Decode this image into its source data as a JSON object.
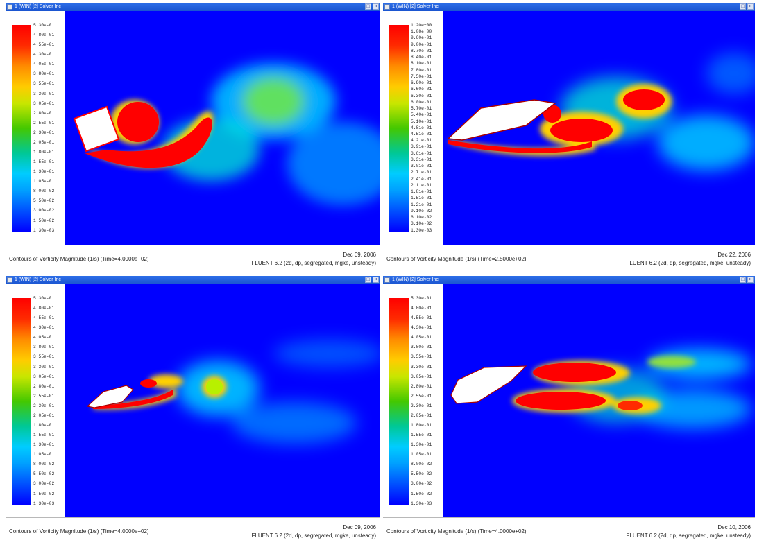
{
  "windows": [
    {
      "title": "1 (WIN) [2] Solver Inc",
      "colorbar_ticks": [
        "5.30e-01",
        "4.80e-01",
        "4.55e-01",
        "4.30e-01",
        "4.05e-01",
        "3.80e-01",
        "3.55e-01",
        "3.30e-01",
        "3.05e-01",
        "2.80e-01",
        "2.55e-01",
        "2.30e-01",
        "2.05e-01",
        "1.80e-01",
        "1.55e-01",
        "1.30e-01",
        "1.05e-01",
        "8.00e-02",
        "5.50e-02",
        "3.00e-02",
        "1.50e-02",
        "1.30e-03"
      ],
      "caption": "Contours of Vorticity Magnitude (1/s)  (Time=4.0000e+02)",
      "date": "Dec 09, 2006",
      "solver": "FLUENT 6.2 (2d, dp, segregated, mgke, unsteady)"
    },
    {
      "title": "1 (WIN) [2] Solver Inc",
      "colorbar_ticks": [
        "1.20e+00",
        "1.08e+00",
        "9.60e-01",
        "9.00e-01",
        "8.70e-01",
        "8.40e-01",
        "8.10e-01",
        "7.80e-01",
        "7.50e-01",
        "6.90e-01",
        "6.60e-01",
        "6.30e-01",
        "6.00e-01",
        "5.70e-01",
        "5.40e-01",
        "5.10e-01",
        "4.81e-01",
        "4.51e-01",
        "4.21e-01",
        "3.91e-01",
        "3.61e-01",
        "3.31e-01",
        "3.01e-01",
        "2.71e-01",
        "2.41e-01",
        "2.11e-01",
        "1.81e-01",
        "1.51e-01",
        "1.21e-01",
        "9.10e-02",
        "6.10e-02",
        "3.10e-02",
        "1.30e-03"
      ],
      "caption": "Contours of Vorticity Magnitude (1/s)  (Time=2.5000e+02)",
      "date": "Dec 22, 2006",
      "solver": "FLUENT 6.2 (2d, dp, segregated, mgke, unsteady)"
    },
    {
      "title": "1 (WIN) [2] Solver Inc",
      "colorbar_ticks": [
        "5.30e-01",
        "4.80e-01",
        "4.55e-01",
        "4.30e-01",
        "4.05e-01",
        "3.80e-01",
        "3.55e-01",
        "3.30e-01",
        "3.05e-01",
        "2.80e-01",
        "2.55e-01",
        "2.30e-01",
        "2.05e-01",
        "1.80e-01",
        "1.55e-01",
        "1.30e-01",
        "1.05e-01",
        "8.00e-02",
        "5.50e-02",
        "3.00e-02",
        "1.50e-02",
        "1.30e-03"
      ],
      "caption": "Contours of Vorticity Magnitude (1/s)  (Time=4.0000e+02)",
      "date": "Dec 09, 2006",
      "solver": "FLUENT 6.2 (2d, dp, segregated, mgke, unsteady)"
    },
    {
      "title": "1 (WIN) [2] Solver Inc",
      "colorbar_ticks": [
        "5.30e-01",
        "4.80e-01",
        "4.55e-01",
        "4.30e-01",
        "4.05e-01",
        "3.80e-01",
        "3.55e-01",
        "3.30e-01",
        "3.05e-01",
        "2.80e-01",
        "2.55e-01",
        "2.30e-01",
        "2.05e-01",
        "1.80e-01",
        "1.55e-01",
        "1.30e-01",
        "1.05e-01",
        "8.00e-02",
        "5.50e-02",
        "3.00e-02",
        "1.50e-02",
        "1.30e-03"
      ],
      "caption": "Contours of Vorticity Magnitude (1/s)  (Time=4.0000e+02)",
      "date": "Dec 10, 2006",
      "solver": "FLUENT 6.2 (2d, dp, segregated, mgke, unsteady)"
    }
  ],
  "colors": {
    "background_field": "#0000ff",
    "high_vorticity": "#ff0000",
    "titlebar": "#1a55d0"
  }
}
